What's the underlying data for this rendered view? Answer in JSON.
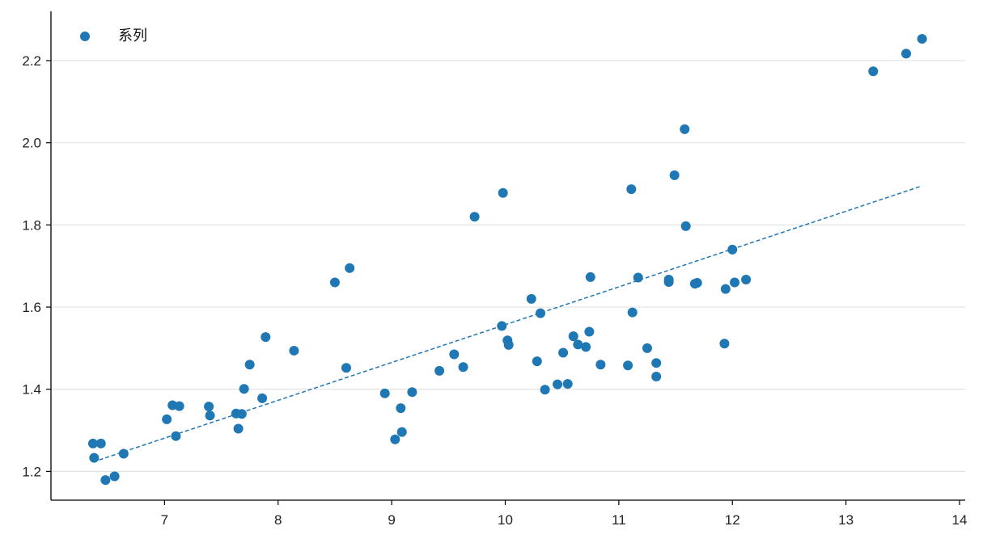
{
  "chart_data": {
    "type": "scatter",
    "title": "",
    "xlabel": "",
    "ylabel": "",
    "xlim": [
      6.0,
      14.05
    ],
    "ylim": [
      1.13,
      2.32
    ],
    "x_ticks": [
      7,
      8,
      9,
      10,
      11,
      12,
      13,
      14
    ],
    "y_ticks": [
      1.2,
      1.4,
      1.6,
      1.8,
      2.0,
      2.2
    ],
    "x_tick_labels": [
      "7",
      "8",
      "9",
      "10",
      "11",
      "12",
      "13",
      "14"
    ],
    "y_tick_labels": [
      "1.2",
      "1.4",
      "1.6",
      "1.8",
      "2.0",
      "2.2"
    ],
    "grid": "horizontal",
    "legend_position": "top-left",
    "point_color": "#1f77b4",
    "series": [
      {
        "name": "系列",
        "points": [
          [
            6.37,
            1.268
          ],
          [
            6.44,
            1.268
          ],
          [
            6.38,
            1.233
          ],
          [
            6.48,
            1.179
          ],
          [
            6.56,
            1.188
          ],
          [
            6.64,
            1.243
          ],
          [
            7.02,
            1.327
          ],
          [
            7.07,
            1.361
          ],
          [
            7.13,
            1.359
          ],
          [
            7.1,
            1.286
          ],
          [
            7.39,
            1.358
          ],
          [
            7.4,
            1.336
          ],
          [
            7.63,
            1.341
          ],
          [
            7.65,
            1.304
          ],
          [
            7.68,
            1.34
          ],
          [
            7.7,
            1.401
          ],
          [
            7.75,
            1.46
          ],
          [
            7.86,
            1.378
          ],
          [
            7.89,
            1.527
          ],
          [
            8.14,
            1.494
          ],
          [
            8.5,
            1.66
          ],
          [
            8.6,
            1.452
          ],
          [
            8.63,
            1.695
          ],
          [
            8.94,
            1.39
          ],
          [
            9.03,
            1.278
          ],
          [
            9.08,
            1.354
          ],
          [
            9.09,
            1.296
          ],
          [
            9.18,
            1.393
          ],
          [
            9.42,
            1.445
          ],
          [
            9.55,
            1.485
          ],
          [
            9.63,
            1.454
          ],
          [
            9.73,
            1.82
          ],
          [
            9.97,
            1.554
          ],
          [
            9.98,
            1.878
          ],
          [
            10.02,
            1.519
          ],
          [
            10.03,
            1.508
          ],
          [
            10.23,
            1.62
          ],
          [
            10.28,
            1.468
          ],
          [
            10.31,
            1.585
          ],
          [
            10.35,
            1.399
          ],
          [
            10.46,
            1.412
          ],
          [
            10.51,
            1.489
          ],
          [
            10.55,
            1.413
          ],
          [
            10.6,
            1.529
          ],
          [
            10.64,
            1.509
          ],
          [
            10.71,
            1.503
          ],
          [
            10.74,
            1.54
          ],
          [
            10.75,
            1.673
          ],
          [
            10.84,
            1.46
          ],
          [
            11.08,
            1.458
          ],
          [
            11.11,
            1.887
          ],
          [
            11.12,
            1.587
          ],
          [
            11.17,
            1.672
          ],
          [
            11.25,
            1.5
          ],
          [
            11.33,
            1.464
          ],
          [
            11.33,
            1.431
          ],
          [
            11.44,
            1.661
          ],
          [
            11.44,
            1.667
          ],
          [
            11.49,
            1.921
          ],
          [
            11.58,
            2.033
          ],
          [
            11.59,
            1.797
          ],
          [
            11.67,
            1.657
          ],
          [
            11.69,
            1.659
          ],
          [
            11.93,
            1.511
          ],
          [
            11.94,
            1.644
          ],
          [
            12.0,
            1.74
          ],
          [
            12.02,
            1.66
          ],
          [
            12.12,
            1.667
          ],
          [
            13.24,
            2.174
          ],
          [
            13.53,
            2.217
          ],
          [
            13.67,
            2.253
          ]
        ]
      }
    ],
    "trendline": {
      "style": "dashed",
      "x": [
        6.37,
        13.67
      ],
      "y": [
        1.223,
        1.895
      ]
    }
  }
}
